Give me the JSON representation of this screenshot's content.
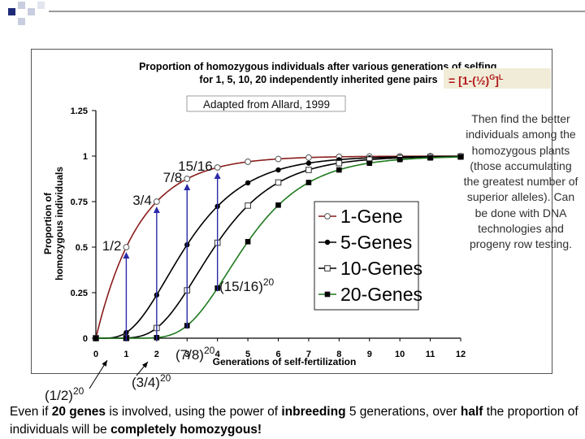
{
  "chart_data": {
    "type": "line",
    "title_line1": "Proportion of homozygous individuals after various generations of selfing,",
    "title_line2": "for 1, 5, 10, 20 independently inherited gene pairs",
    "formula": "= [1-(½)",
    "formula_exp_g": "G",
    "formula_mid": "]",
    "formula_exp_l": "L",
    "subtitle": "Adapted from Allard, 1999",
    "xlabel": "Generations of self-fertilization",
    "ylabel_line1": "Proportion of",
    "ylabel_line2": "homozygous individuals",
    "xlim": [
      0,
      12
    ],
    "ylim": [
      0,
      1.25
    ],
    "x_ticks": [
      "0",
      "1",
      "2",
      "3",
      "4",
      "5",
      "6",
      "7",
      "8",
      "9",
      "10",
      "11",
      "12"
    ],
    "y_ticks": [
      "0",
      "0.25",
      "0.5",
      "0.75",
      "1",
      "1.25"
    ],
    "series": [
      {
        "name": "1-Gene",
        "L": 1,
        "color": "#8b1c1c",
        "marker": "open-circle",
        "x": [
          0,
          1,
          2,
          3,
          4,
          5,
          6,
          7,
          8,
          9,
          10,
          11,
          12
        ],
        "values": [
          0,
          0.5,
          0.75,
          0.875,
          0.9375,
          0.969,
          0.984,
          0.992,
          0.996,
          0.998,
          0.999,
          1,
          1
        ]
      },
      {
        "name": "5-Genes",
        "L": 5,
        "color": "#000000",
        "marker": "filled-circle",
        "x": [
          0,
          1,
          2,
          3,
          4,
          5,
          6,
          7,
          8,
          9,
          10,
          11,
          12
        ],
        "values": [
          0,
          0.031,
          0.237,
          0.513,
          0.724,
          0.853,
          0.924,
          0.961,
          0.98,
          0.99,
          0.995,
          0.998,
          0.999
        ]
      },
      {
        "name": "10-Genes",
        "L": 10,
        "color": "#000000",
        "marker": "open-square",
        "x": [
          0,
          1,
          2,
          3,
          4,
          5,
          6,
          7,
          8,
          9,
          10,
          11,
          12
        ],
        "values": [
          0,
          0.001,
          0.056,
          0.263,
          0.524,
          0.728,
          0.855,
          0.924,
          0.961,
          0.981,
          0.99,
          0.995,
          0.998
        ]
      },
      {
        "name": "20-Genes",
        "L": 20,
        "color": "#1e7a1e",
        "marker": "filled-square",
        "x": [
          0,
          1,
          2,
          3,
          4,
          5,
          6,
          7,
          8,
          9,
          10,
          11,
          12
        ],
        "values": [
          0,
          0,
          0.003,
          0.069,
          0.275,
          0.53,
          0.731,
          0.855,
          0.924,
          0.961,
          0.981,
          0.99,
          0.995
        ]
      }
    ],
    "annotations": [
      {
        "text": "1/2",
        "x": 1,
        "y": 0.5
      },
      {
        "text": "3/4",
        "x": 2,
        "y": 0.75
      },
      {
        "text": "7/8",
        "x": 3,
        "y": 0.875
      },
      {
        "text": "15/16",
        "x": 4,
        "y": 0.9375
      }
    ],
    "power_labels": [
      {
        "base": "(1/2)",
        "exp": "20",
        "x": 1
      },
      {
        "base": "(3/4)",
        "exp": "20",
        "x": 2
      },
      {
        "base": "(7/8)",
        "exp": "20",
        "x": 3
      },
      {
        "base": "(15/16)",
        "exp": "20",
        "x": 4
      }
    ]
  },
  "side_note": "Then find the better individuals among the homozygous plants (those accumulating the greatest number of superior alleles). Can be done with DNA technologies and progeny row testing.",
  "bottom": {
    "t1": "Even if ",
    "t2": "20 genes",
    "t3": " is involved, using the power of ",
    "t4": "inbreeding",
    "t5": " 5 generations, over ",
    "t6": "half",
    "t7": " the proportion of individuals will be ",
    "t8": "completely homozygous!"
  },
  "colors": {
    "arrow": "#2a2aa8",
    "formula_box": "#f1ecd8",
    "deco": "#1e2a78"
  }
}
